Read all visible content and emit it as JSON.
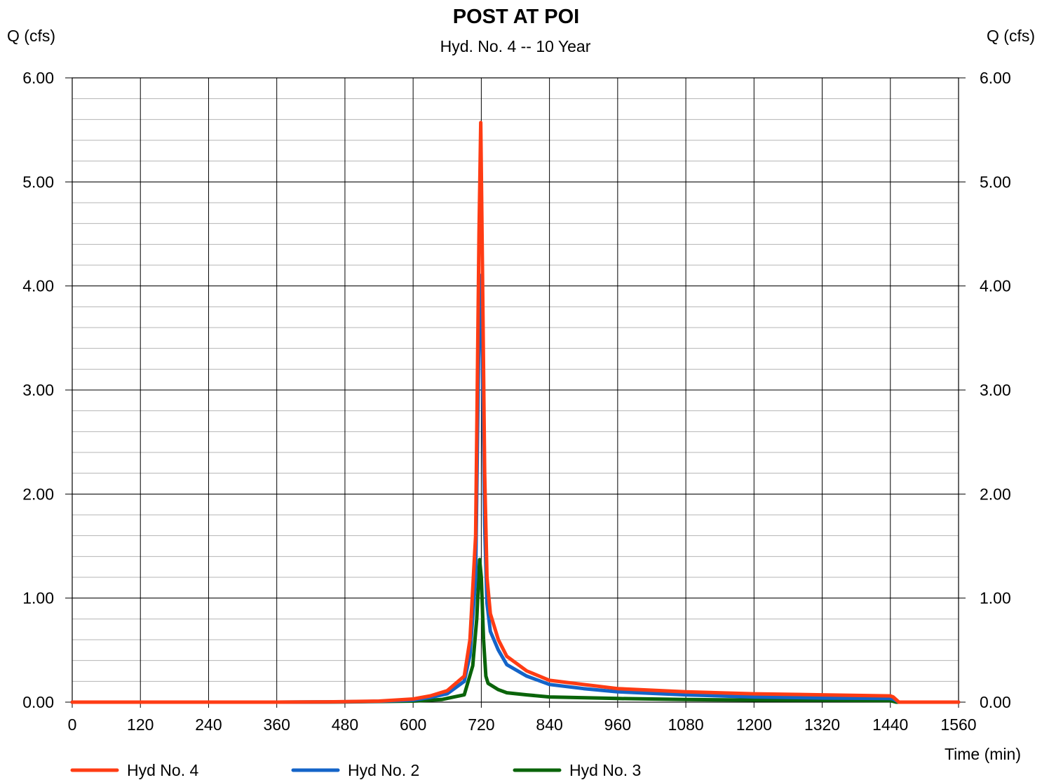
{
  "chart_data": {
    "type": "line",
    "title": "POST AT POI",
    "subtitle": "Hyd. No. 4 -- 10 Year",
    "ylabel_left": "Q (cfs)",
    "ylabel_right": "Q (cfs)",
    "xlabel": "Time (min)",
    "xlim": [
      0,
      1560
    ],
    "ylim": [
      0,
      6
    ],
    "x_ticks": [
      "0",
      "120",
      "240",
      "360",
      "480",
      "600",
      "720",
      "840",
      "960",
      "1080",
      "1200",
      "1320",
      "1440",
      "1560"
    ],
    "y_ticks": [
      "0.00",
      "1.00",
      "2.00",
      "3.00",
      "4.00",
      "5.00",
      "6.00"
    ],
    "grid": true,
    "legend_position": "bottom",
    "series": [
      {
        "name": "Hyd No. 4",
        "color": "#ff3c14",
        "points": [
          [
            0,
            0
          ],
          [
            360,
            0
          ],
          [
            450,
            0.003
          ],
          [
            540,
            0.01
          ],
          [
            600,
            0.03
          ],
          [
            630,
            0.06
          ],
          [
            660,
            0.11
          ],
          [
            690,
            0.25
          ],
          [
            700,
            0.6
          ],
          [
            710,
            1.6
          ],
          [
            716,
            4.5
          ],
          [
            719,
            5.57
          ],
          [
            722,
            4.2
          ],
          [
            726,
            2.2
          ],
          [
            730,
            1.2
          ],
          [
            736,
            0.85
          ],
          [
            750,
            0.6
          ],
          [
            765,
            0.44
          ],
          [
            800,
            0.3
          ],
          [
            840,
            0.21
          ],
          [
            900,
            0.17
          ],
          [
            960,
            0.13
          ],
          [
            1080,
            0.1
          ],
          [
            1200,
            0.08
          ],
          [
            1320,
            0.07
          ],
          [
            1440,
            0.06
          ],
          [
            1445,
            0.05
          ],
          [
            1455,
            0
          ],
          [
            1560,
            0
          ]
        ]
      },
      {
        "name": "Hyd No. 2",
        "color": "#1464c8",
        "points": [
          [
            0,
            0
          ],
          [
            360,
            0
          ],
          [
            450,
            0.002
          ],
          [
            540,
            0.008
          ],
          [
            600,
            0.02
          ],
          [
            630,
            0.045
          ],
          [
            660,
            0.08
          ],
          [
            690,
            0.2
          ],
          [
            700,
            0.45
          ],
          [
            710,
            1.2
          ],
          [
            716,
            3.6
          ],
          [
            719,
            4.1
          ],
          [
            722,
            3.3
          ],
          [
            726,
            1.7
          ],
          [
            730,
            0.95
          ],
          [
            736,
            0.68
          ],
          [
            750,
            0.5
          ],
          [
            765,
            0.36
          ],
          [
            800,
            0.25
          ],
          [
            840,
            0.17
          ],
          [
            900,
            0.13
          ],
          [
            960,
            0.1
          ],
          [
            1080,
            0.07
          ],
          [
            1200,
            0.05
          ],
          [
            1320,
            0.04
          ],
          [
            1440,
            0.035
          ],
          [
            1445,
            0.03
          ],
          [
            1455,
            0
          ],
          [
            1560,
            0
          ]
        ]
      },
      {
        "name": "Hyd No. 3",
        "color": "#0a640a",
        "points": [
          [
            0,
            0
          ],
          [
            360,
            0
          ],
          [
            480,
            0.002
          ],
          [
            600,
            0.01
          ],
          [
            650,
            0.025
          ],
          [
            690,
            0.07
          ],
          [
            705,
            0.35
          ],
          [
            712,
            0.8
          ],
          [
            717,
            1.37
          ],
          [
            720,
            1.2
          ],
          [
            724,
            0.6
          ],
          [
            728,
            0.25
          ],
          [
            732,
            0.18
          ],
          [
            750,
            0.12
          ],
          [
            765,
            0.09
          ],
          [
            800,
            0.07
          ],
          [
            840,
            0.05
          ],
          [
            960,
            0.035
          ],
          [
            1080,
            0.025
          ],
          [
            1200,
            0.02
          ],
          [
            1320,
            0.018
          ],
          [
            1440,
            0.015
          ],
          [
            1450,
            0
          ],
          [
            1560,
            0
          ]
        ]
      }
    ]
  }
}
